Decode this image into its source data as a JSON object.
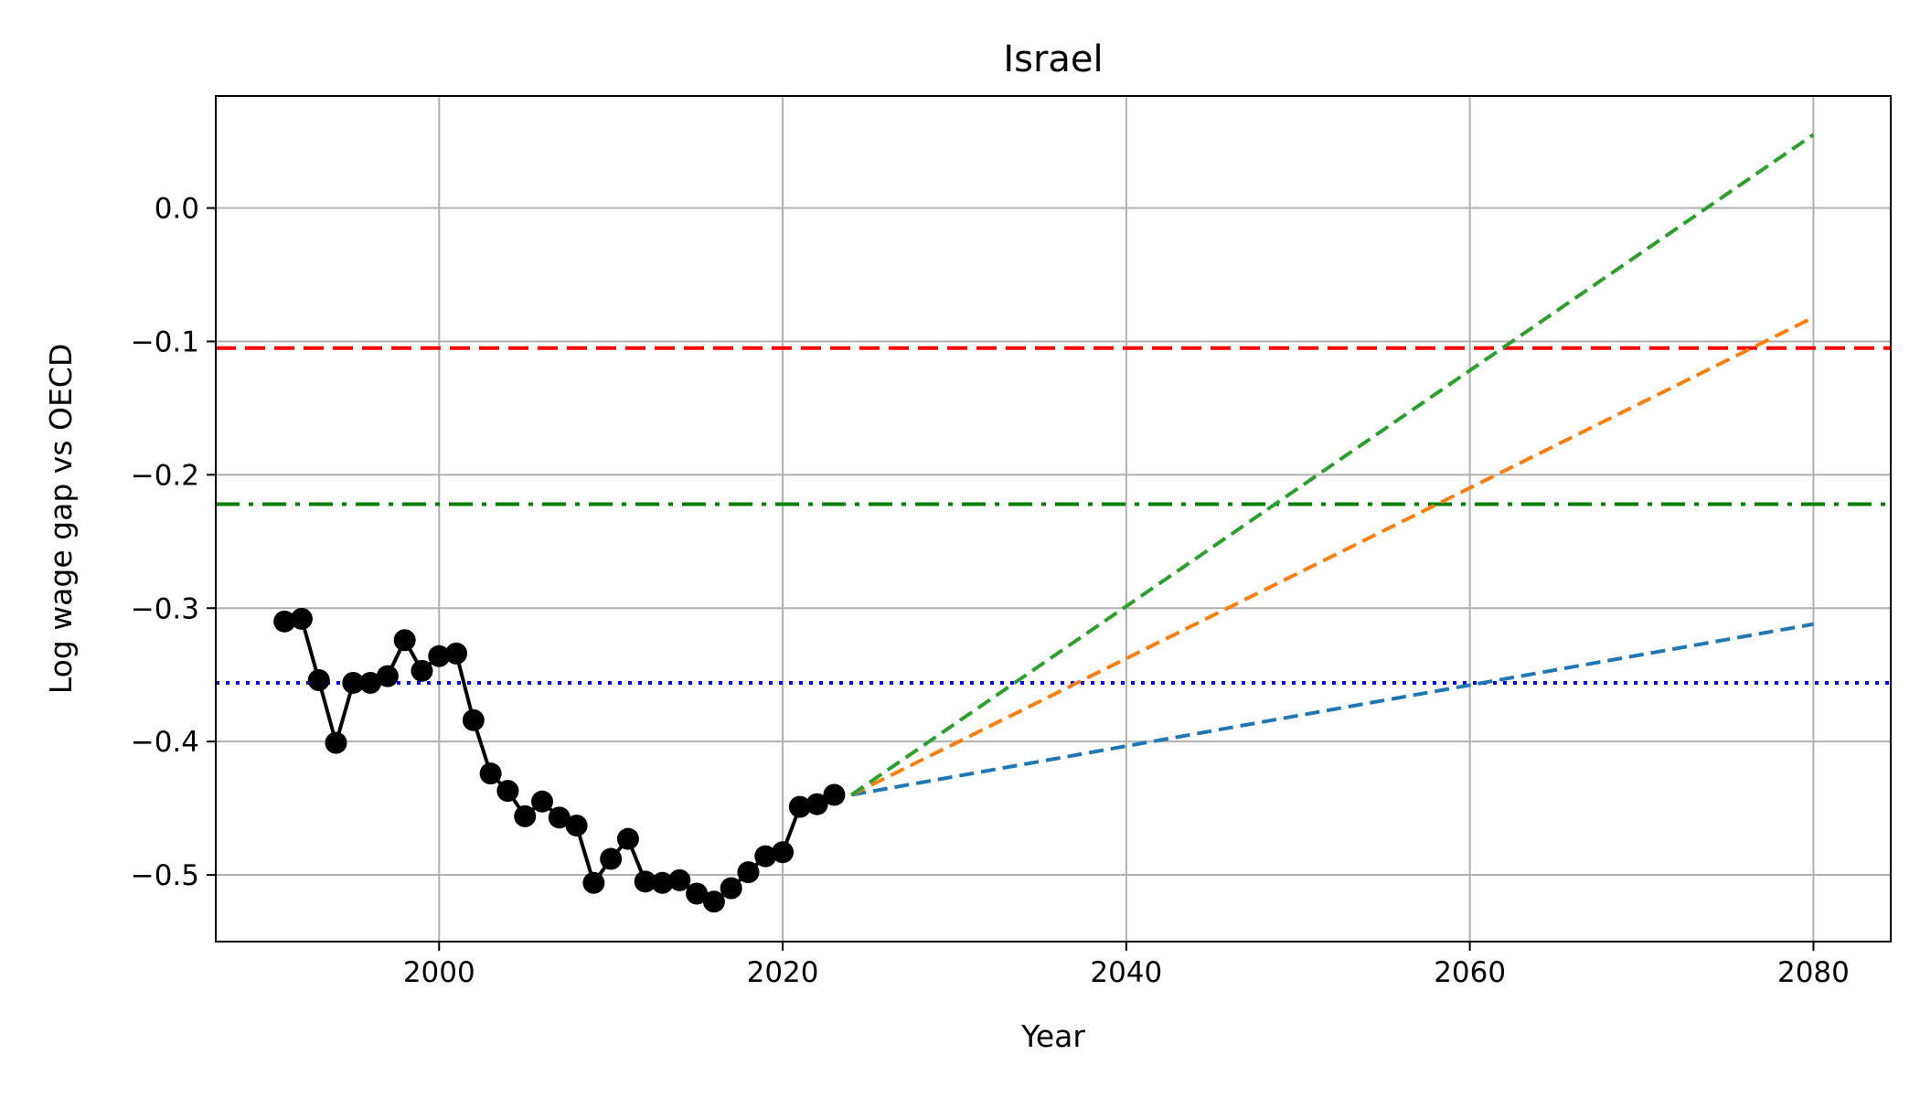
{
  "chart_data": {
    "type": "line",
    "title": "Israel",
    "xlabel": "Year",
    "ylabel": "Log wage gap vs OECD",
    "xlim": [
      1987,
      2084.5
    ],
    "ylim": [
      -0.55,
      0.084
    ],
    "xticks": [
      2000,
      2020,
      2040,
      2060,
      2080
    ],
    "yticks": [
      0.0,
      -0.1,
      -0.2,
      -0.3,
      -0.4,
      -0.5
    ],
    "ytick_labels": [
      "0.0",
      "−0.1",
      "−0.2",
      "−0.3",
      "−0.4",
      "−0.5"
    ],
    "grid": true,
    "legend": "none",
    "historical": {
      "color": "#000000",
      "style": "solid-with-markers",
      "x": [
        1991,
        1992,
        1993,
        1994,
        1995,
        1996,
        1997,
        1998,
        1999,
        2000,
        2001,
        2002,
        2003,
        2004,
        2005,
        2006,
        2007,
        2008,
        2009,
        2010,
        2011,
        2012,
        2013,
        2014,
        2015,
        2016,
        2017,
        2018,
        2019,
        2020,
        2021,
        2022,
        2023
      ],
      "y": [
        -0.31,
        -0.308,
        -0.354,
        -0.401,
        -0.356,
        -0.356,
        -0.351,
        -0.324,
        -0.347,
        -0.336,
        -0.334,
        -0.384,
        -0.424,
        -0.437,
        -0.456,
        -0.445,
        -0.457,
        -0.463,
        -0.506,
        -0.488,
        -0.473,
        -0.505,
        -0.506,
        -0.504,
        -0.514,
        -0.52,
        -0.51,
        -0.498,
        -0.486,
        -0.483,
        -0.449,
        -0.447,
        -0.44
      ]
    },
    "projections": [
      {
        "color": "#1f77b4",
        "style": "dashed",
        "x": [
          2024,
          2080
        ],
        "y": [
          -0.44,
          -0.312
        ]
      },
      {
        "color": "#ff7f0e",
        "style": "dashed",
        "x": [
          2024,
          2080
        ],
        "y": [
          -0.44,
          -0.082
        ]
      },
      {
        "color": "#2ca02c",
        "style": "dashed",
        "x": [
          2024,
          2080
        ],
        "y": [
          -0.44,
          0.055
        ]
      }
    ],
    "reference_lines": [
      {
        "color": "#ff0000",
        "style": "dashed",
        "y": -0.105
      },
      {
        "color": "#008000",
        "style": "dashdot",
        "y": -0.222
      },
      {
        "color": "#0000ff",
        "style": "dotted",
        "y": -0.356
      }
    ]
  }
}
